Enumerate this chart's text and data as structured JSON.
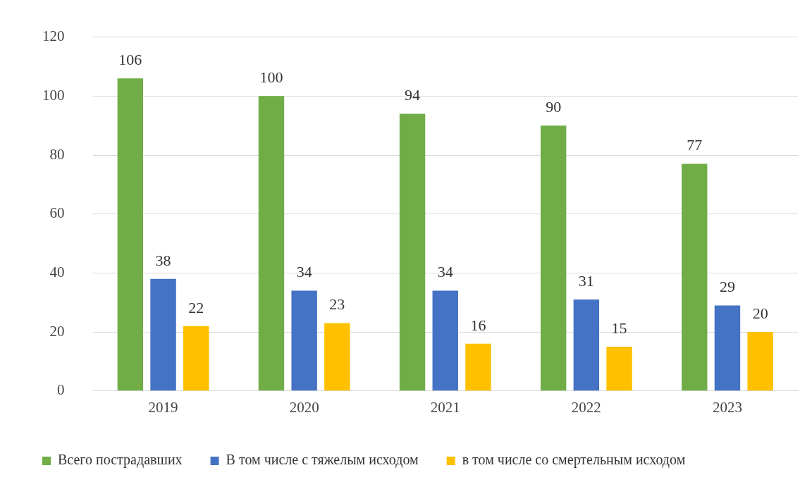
{
  "chart_data": {
    "type": "bar",
    "categories": [
      "2019",
      "2020",
      "2021",
      "2022",
      "2023"
    ],
    "series": [
      {
        "name": "Всего пострадавших",
        "color": "#70ad47",
        "values": [
          106,
          100,
          94,
          90,
          77
        ]
      },
      {
        "name": "В том числе с тяжелым исходом",
        "color": "#4472c4",
        "values": [
          38,
          34,
          34,
          31,
          29
        ]
      },
      {
        "name": "в том числе со смертельным исходом",
        "color": "#ffc000",
        "values": [
          22,
          23,
          16,
          15,
          20
        ]
      }
    ],
    "ylim": [
      0,
      120
    ],
    "yticks": [
      0,
      20,
      40,
      60,
      80,
      100,
      120
    ],
    "grid": "y",
    "legend": "bottom",
    "data_labels": true
  }
}
